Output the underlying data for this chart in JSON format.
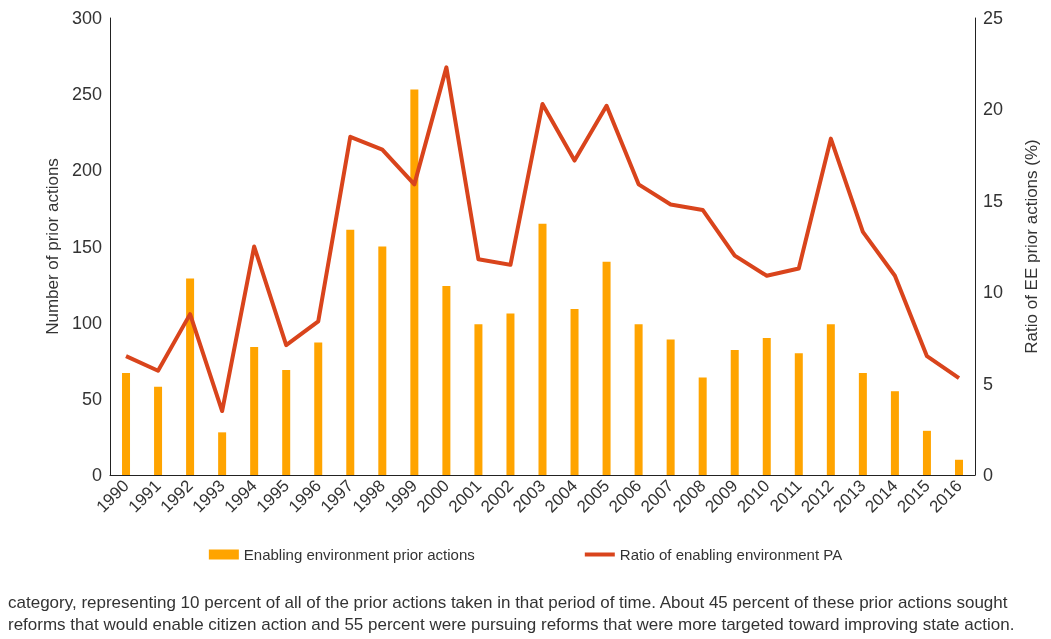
{
  "chart_data": {
    "type": "bar",
    "ylabel": "Number of prior actions",
    "y2label": "Ratio of EE prior actions (%)",
    "annotations": [
      "category, representing 10 percent of all of the prior actions taken in that period of time. About 45 percent of these prior actions sought reforms that would enable citizen action and 55 percent were pursuing reforms that were more targeted toward improving state action."
    ],
    "categories": [
      "1990",
      "1991",
      "1992",
      "1993",
      "1994",
      "1995",
      "1996",
      "1997",
      "1998",
      "1999",
      "2000",
      "2001",
      "2002",
      "2003",
      "2004",
      "2005",
      "2006",
      "2007",
      "2008",
      "2009",
      "2010",
      "2011",
      "2012",
      "2013",
      "2014",
      "2015",
      "2016"
    ],
    "series": [
      {
        "name": "Enabling environment prior actions",
        "color": "#ffa400",
        "values": [
          67,
          58,
          129,
          28,
          84,
          69,
          87,
          161,
          150,
          253,
          124,
          99,
          106,
          165,
          109,
          140,
          99,
          89,
          64,
          82,
          90,
          80,
          99,
          67,
          55,
          29,
          10
        ]
      },
      {
        "name": "Ratio of enabling environment PA",
        "type": "line",
        "axis": "y2",
        "color": "#d9441c",
        "values": [
          6.5,
          5.7,
          8.8,
          3.5,
          12.5,
          7.1,
          8.4,
          18.5,
          17.8,
          15.9,
          22.3,
          11.8,
          11.5,
          20.3,
          17.2,
          20.2,
          15.9,
          14.8,
          14.5,
          12.0,
          10.9,
          11.3,
          18.4,
          13.3,
          10.9,
          6.5,
          5.3
        ]
      }
    ],
    "ylim": [
      0,
      300
    ],
    "yticks": [
      0,
      50,
      100,
      150,
      200,
      250,
      300
    ],
    "y2lim": [
      0,
      25
    ],
    "y2ticks": [
      0,
      5,
      10,
      15,
      20,
      25
    ],
    "grid": false,
    "legend": "bottom",
    "marker": "none",
    "line_style": "solid"
  }
}
